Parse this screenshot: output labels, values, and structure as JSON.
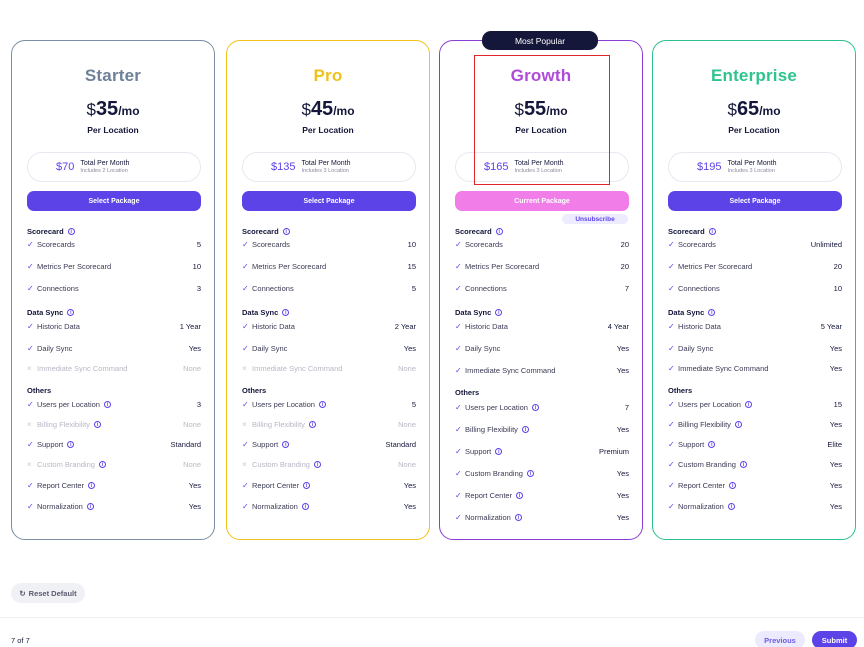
{
  "most_popular": "Most Popular",
  "info_glyph": "i",
  "check_glyph": "✓",
  "cross_glyph": "×",
  "plans": [
    {
      "name": "Starter",
      "currency": "$",
      "price": "35",
      "per": "/mo",
      "per_location": "Per Location",
      "total_amount": "$70",
      "total_label": "Total Per Month",
      "includes": "Includes 2 Location",
      "button": "Select Package",
      "scorecard": [
        [
          "Scorecards",
          "5"
        ],
        [
          "Metrics Per Scorecard",
          "10"
        ],
        [
          "Connections",
          "3"
        ]
      ],
      "datasync": [
        [
          "Historic Data",
          "1 Year"
        ],
        [
          "Daily Sync",
          "Yes"
        ],
        [
          "Immediate Sync Command",
          "None"
        ]
      ],
      "others": [
        [
          "Users per Location",
          "3"
        ],
        [
          "Billing Flexibility",
          "None"
        ],
        [
          "Support",
          "Standard"
        ],
        [
          "Custom Branding",
          "None"
        ],
        [
          "Report Center",
          "Yes"
        ],
        [
          "Normalization",
          "Yes"
        ]
      ]
    },
    {
      "name": "Pro",
      "currency": "$",
      "price": "45",
      "per": "/mo",
      "per_location": "Per Location",
      "total_amount": "$135",
      "total_label": "Total Per Month",
      "includes": "Includes 3 Location",
      "button": "Select Package",
      "scorecard": [
        [
          "Scorecards",
          "10"
        ],
        [
          "Metrics Per Scorecard",
          "15"
        ],
        [
          "Connections",
          "5"
        ]
      ],
      "datasync": [
        [
          "Historic Data",
          "2 Year"
        ],
        [
          "Daily Sync",
          "Yes"
        ],
        [
          "Immediate Sync Command",
          "None"
        ]
      ],
      "others": [
        [
          "Users per Location",
          "5"
        ],
        [
          "Billing Flexibility",
          "None"
        ],
        [
          "Support",
          "Standard"
        ],
        [
          "Custom Branding",
          "None"
        ],
        [
          "Report Center",
          "Yes"
        ],
        [
          "Normalization",
          "Yes"
        ]
      ]
    },
    {
      "name": "Growth",
      "currency": "$",
      "price": "55",
      "per": "/mo",
      "per_location": "Per Location",
      "total_amount": "$165",
      "total_label": "Total Per Month",
      "includes": "Includes 3 Location",
      "button": "Current Package",
      "unsubscribe": "Unsubscribe",
      "scorecard": [
        [
          "Scorecards",
          "20"
        ],
        [
          "Metrics Per Scorecard",
          "20"
        ],
        [
          "Connections",
          "7"
        ]
      ],
      "datasync": [
        [
          "Historic Data",
          "4 Year"
        ],
        [
          "Daily Sync",
          "Yes"
        ],
        [
          "Immediate Sync Command",
          "Yes"
        ]
      ],
      "others": [
        [
          "Users per Location",
          "7"
        ],
        [
          "Billing Flexibility",
          "Yes"
        ],
        [
          "Support",
          "Premium"
        ],
        [
          "Custom Branding",
          "Yes"
        ],
        [
          "Report Center",
          "Yes"
        ],
        [
          "Normalization",
          "Yes"
        ]
      ]
    },
    {
      "name": "Enterprise",
      "currency": "$",
      "price": "65",
      "per": "/mo",
      "per_location": "Per Location",
      "total_amount": "$195",
      "total_label": "Total Per Month",
      "includes": "Includes 3 Location",
      "button": "Select Package",
      "scorecard": [
        [
          "Scorecards",
          "Unlimited"
        ],
        [
          "Metrics Per Scorecard",
          "20"
        ],
        [
          "Connections",
          "10"
        ]
      ],
      "datasync": [
        [
          "Historic Data",
          "5 Year"
        ],
        [
          "Daily Sync",
          "Yes"
        ],
        [
          "Immediate Sync Command",
          "Yes"
        ]
      ],
      "others": [
        [
          "Users per Location",
          "15"
        ],
        [
          "Billing Flexibility",
          "Yes"
        ],
        [
          "Support",
          "Elite"
        ],
        [
          "Custom Branding",
          "Yes"
        ],
        [
          "Report Center",
          "Yes"
        ],
        [
          "Normalization",
          "Yes"
        ]
      ]
    }
  ],
  "section_titles": {
    "scorecard": "Scorecard",
    "datasync": "Data Sync",
    "others": "Others"
  },
  "footer": {
    "reset": "Reset Default",
    "reset_icon": "↻",
    "page_count": "7 of 7",
    "previous": "Previous",
    "submit": "Submit"
  }
}
